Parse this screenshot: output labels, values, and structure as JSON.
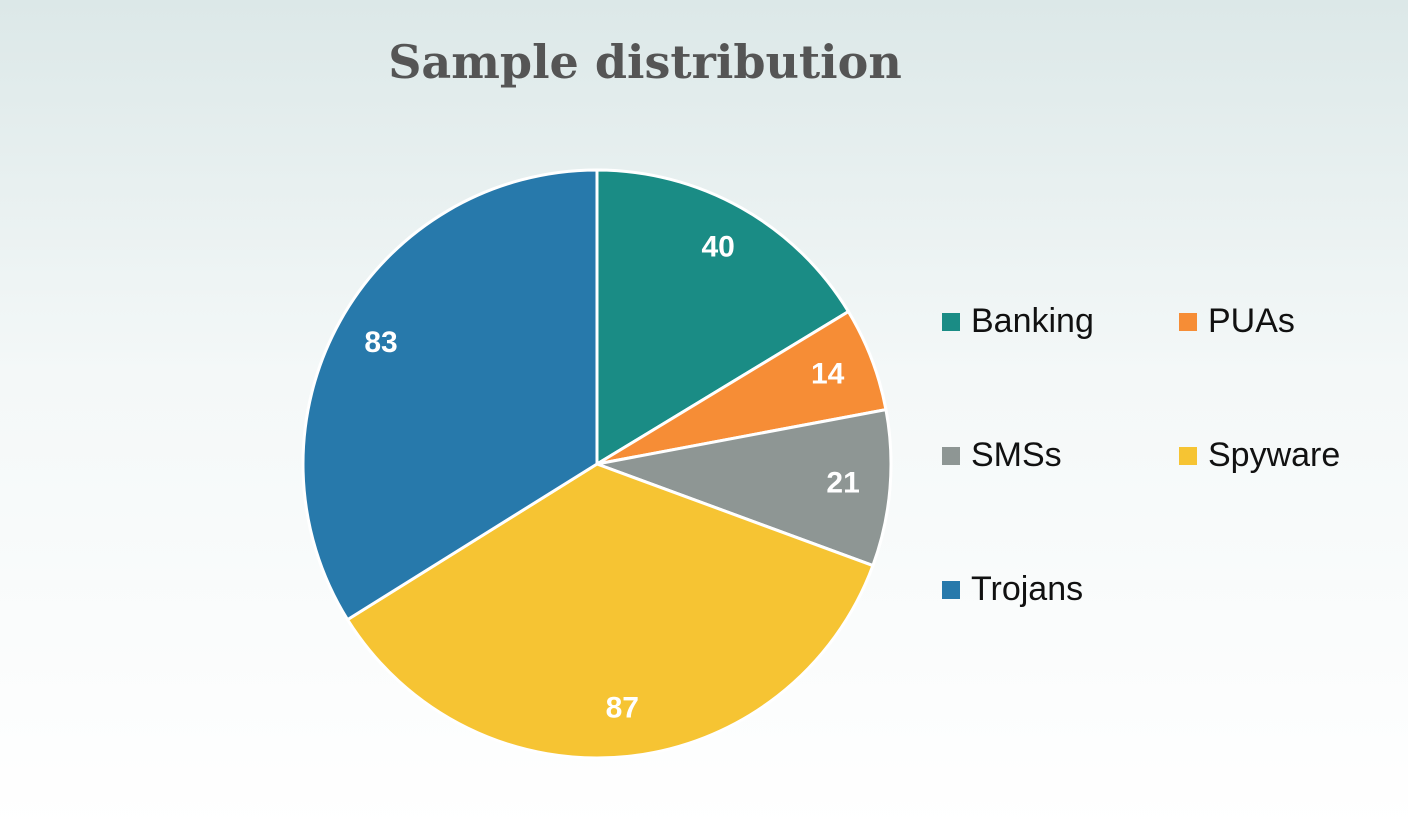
{
  "chart_data": {
    "type": "pie",
    "title": "Sample distribution",
    "categories": [
      "Banking",
      "PUAs",
      "SMSs",
      "Spyware",
      "Trojans"
    ],
    "values": [
      40,
      14,
      21,
      87,
      83
    ],
    "colors": [
      "#1a8c85",
      "#f68d36",
      "#8e9694",
      "#f6c433",
      "#2779ab"
    ],
    "legend": "right"
  }
}
